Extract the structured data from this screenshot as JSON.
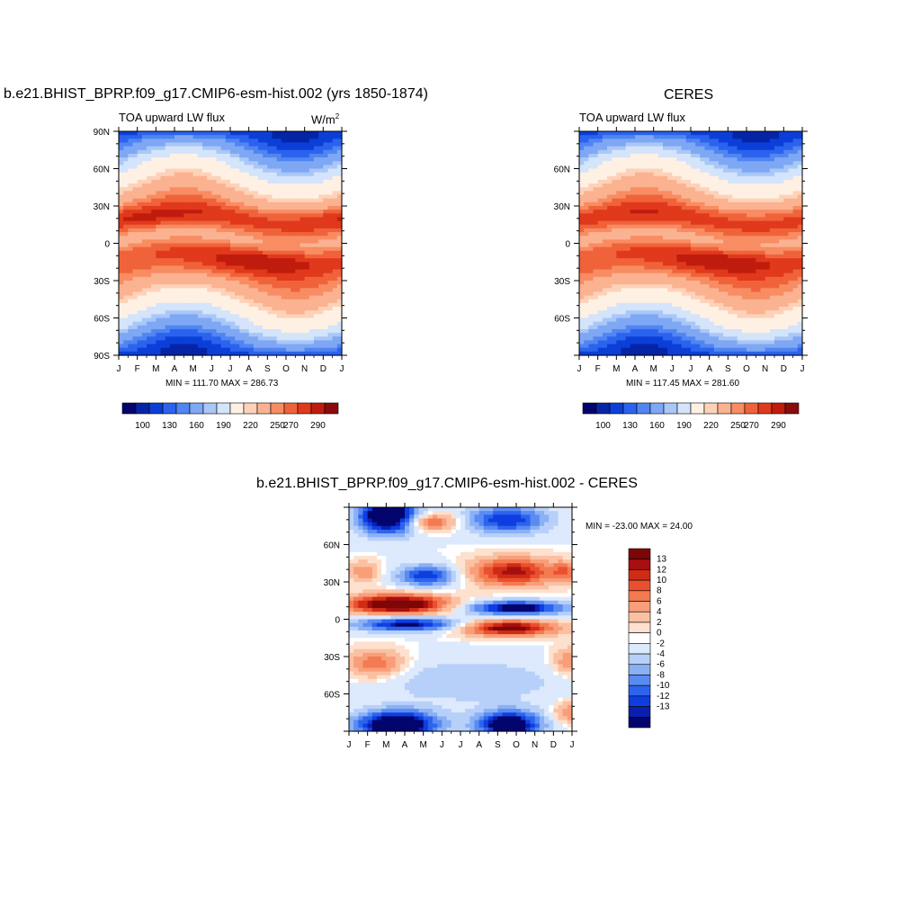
{
  "colors": {
    "abs_palette": [
      "#04046e",
      "#0525a6",
      "#0b3fd8",
      "#2b63ee",
      "#5085f2",
      "#7ea7f4",
      "#a9c7f7",
      "#d3e4fb",
      "#fff0e4",
      "#fdd2b8",
      "#fbb290",
      "#f88c62",
      "#f0633a",
      "#e0391b",
      "#c01c0e",
      "#8a0b0b"
    ],
    "diff_palette": [
      "#04046e",
      "#0a1eb0",
      "#0f3ee0",
      "#2c64ee",
      "#5a8bf2",
      "#8bb0f6",
      "#b7d0f9",
      "#dde9fc",
      "#ffffff",
      "#fde0cd",
      "#fbc0a2",
      "#f89e78",
      "#f47a52",
      "#ea5030",
      "#d02b14",
      "#a50f0f",
      "#7d0606"
    ]
  },
  "panels": {
    "model": {
      "title": "b.e21.BHIST_BPRP.f09_g17.CMIP6-esm-hist.002 (yrs 1850-1874)",
      "subtitle": "TOA upward LW flux",
      "units_base": "W/m",
      "units_exp": "2",
      "minmax": "MIN = 111.70  MAX = 286.73"
    },
    "obs": {
      "title": "CERES",
      "subtitle": "TOA upward LW flux",
      "minmax": "MIN = 117.45  MAX = 281.60"
    },
    "diff": {
      "title": "b.e21.BHIST_BPRP.f09_g17.CMIP6-esm-hist.002 - CERES",
      "minmax": "MIN = -23.00  MAX =  24.00"
    }
  },
  "chart_data": [
    {
      "type": "heatmap",
      "name": "model TOA upward LW flux",
      "x": [
        "J",
        "F",
        "M",
        "A",
        "M",
        "J",
        "J",
        "A",
        "S",
        "O",
        "N",
        "D",
        "J"
      ],
      "y_ticks_left": [
        "90N",
        "60N",
        "30N",
        "0",
        "30S",
        "60S",
        "90S"
      ],
      "y_range": [
        -90,
        90
      ],
      "z_range": [
        111.7,
        286.73
      ],
      "colorbar_labels": [
        "100",
        "130",
        "160",
        "190",
        "220",
        "250",
        "270",
        "290"
      ]
    },
    {
      "type": "heatmap",
      "name": "CERES TOA upward LW flux",
      "x": [
        "J",
        "F",
        "M",
        "A",
        "M",
        "J",
        "J",
        "A",
        "S",
        "O",
        "N",
        "D",
        "J"
      ],
      "y_ticks_left": [
        "60N",
        "30N",
        "0",
        "30S",
        "60S"
      ],
      "y_range": [
        -90,
        90
      ],
      "z_range": [
        117.45,
        281.6
      ],
      "colorbar_labels": [
        "100",
        "130",
        "160",
        "190",
        "220",
        "250",
        "270",
        "290"
      ]
    },
    {
      "type": "heatmap",
      "name": "model minus CERES",
      "x": [
        "J",
        "F",
        "M",
        "A",
        "M",
        "J",
        "J",
        "A",
        "S",
        "O",
        "N",
        "D",
        "J"
      ],
      "y_ticks_left": [
        "60N",
        "30N",
        "0",
        "30S",
        "60S"
      ],
      "y_range": [
        -90,
        90
      ],
      "z_range": [
        -23.0,
        24.0
      ],
      "colorbar_labels": [
        "13",
        "12",
        "10",
        "8",
        "6",
        "4",
        "2",
        "0",
        "-2",
        "-4",
        "-6",
        "-8",
        "-10",
        "-12",
        "-13"
      ]
    }
  ]
}
